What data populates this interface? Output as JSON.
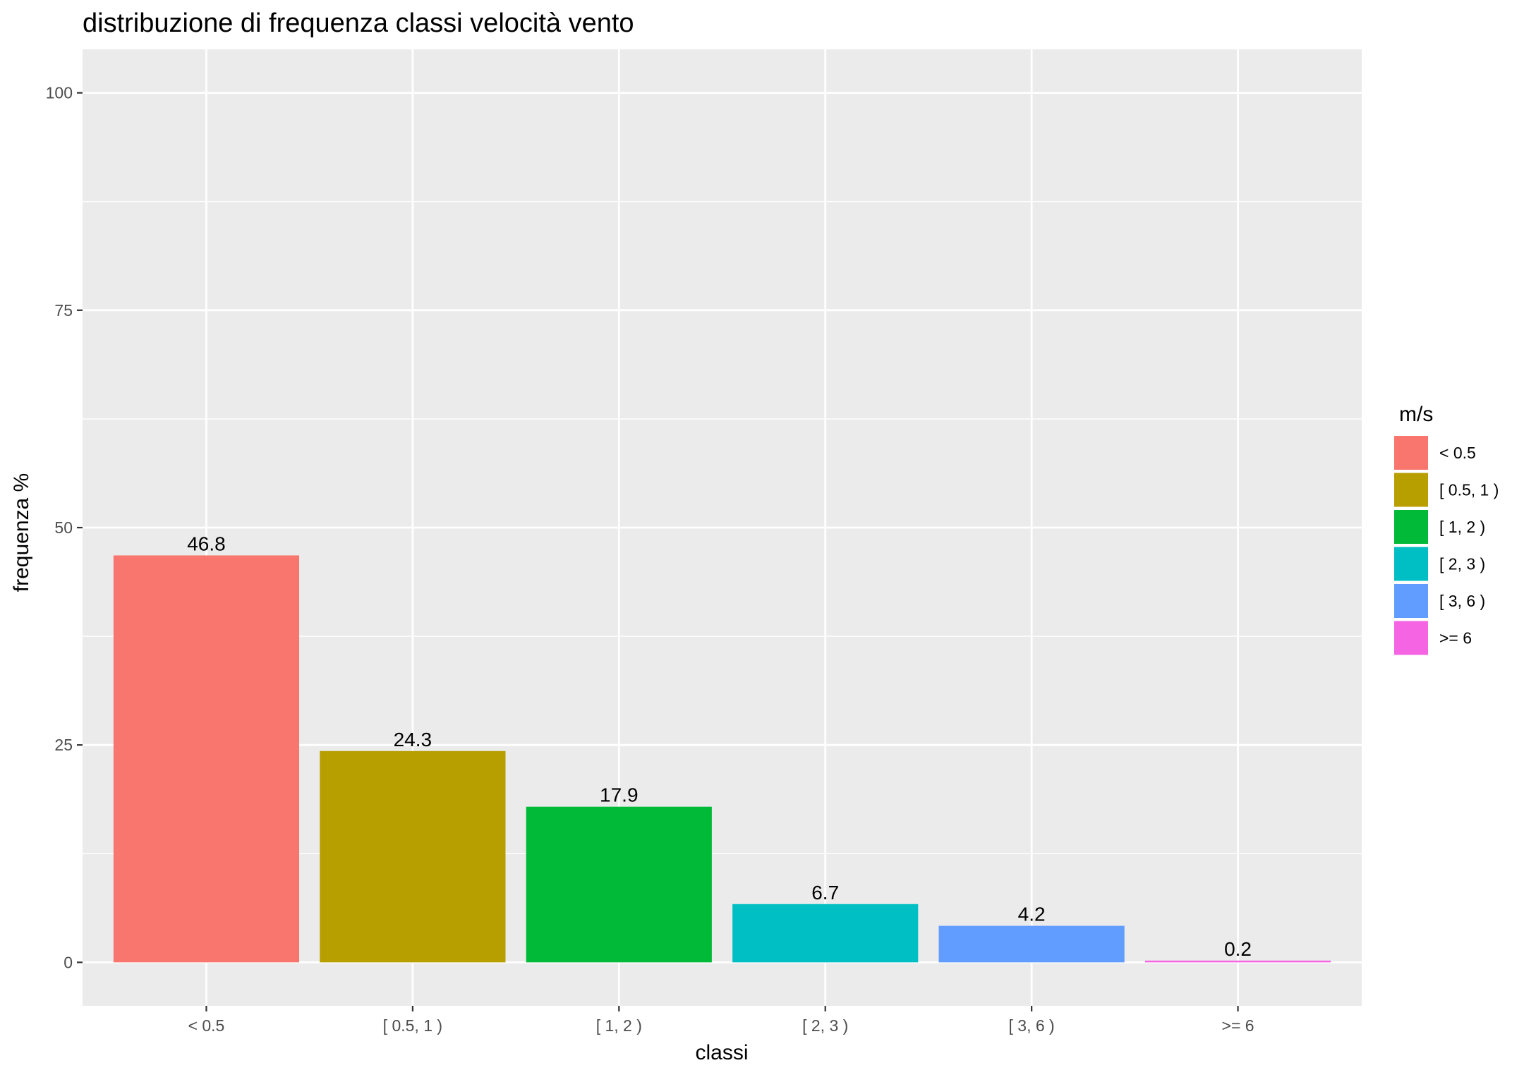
{
  "chart_data": {
    "type": "bar",
    "title": "distribuzione di frequenza classi velocità vento",
    "xlabel": "classi",
    "ylabel": "frequenza %",
    "categories": [
      "< 0.5",
      "[ 0.5, 1 )",
      "[ 1, 2 )",
      "[ 2, 3 )",
      "[ 3, 6 )",
      ">= 6"
    ],
    "values": [
      46.8,
      24.3,
      17.9,
      6.7,
      4.2,
      0.2
    ],
    "data_labels": [
      "46.8",
      "24.3",
      "17.9",
      "6.7",
      "4.2",
      "0.2"
    ],
    "colors": [
      "#F8766D",
      "#B79F00",
      "#00BA38",
      "#00BFC4",
      "#619CFF",
      "#F564E3"
    ],
    "ylim": [
      -5,
      105
    ],
    "yticks": [
      0,
      25,
      50,
      75,
      100
    ],
    "ytick_labels": [
      "0",
      "25",
      "50",
      "75",
      "100"
    ],
    "grid": true,
    "legend": {
      "title": "m/s",
      "position": "right",
      "entries": [
        "< 0.5",
        "[ 0.5, 1 )",
        "[ 1, 2 )",
        "[ 2, 3 )",
        "[ 3, 6 )",
        ">= 6"
      ]
    },
    "panel_background": "#EBEBEB",
    "grid_color": "#FFFFFF"
  }
}
